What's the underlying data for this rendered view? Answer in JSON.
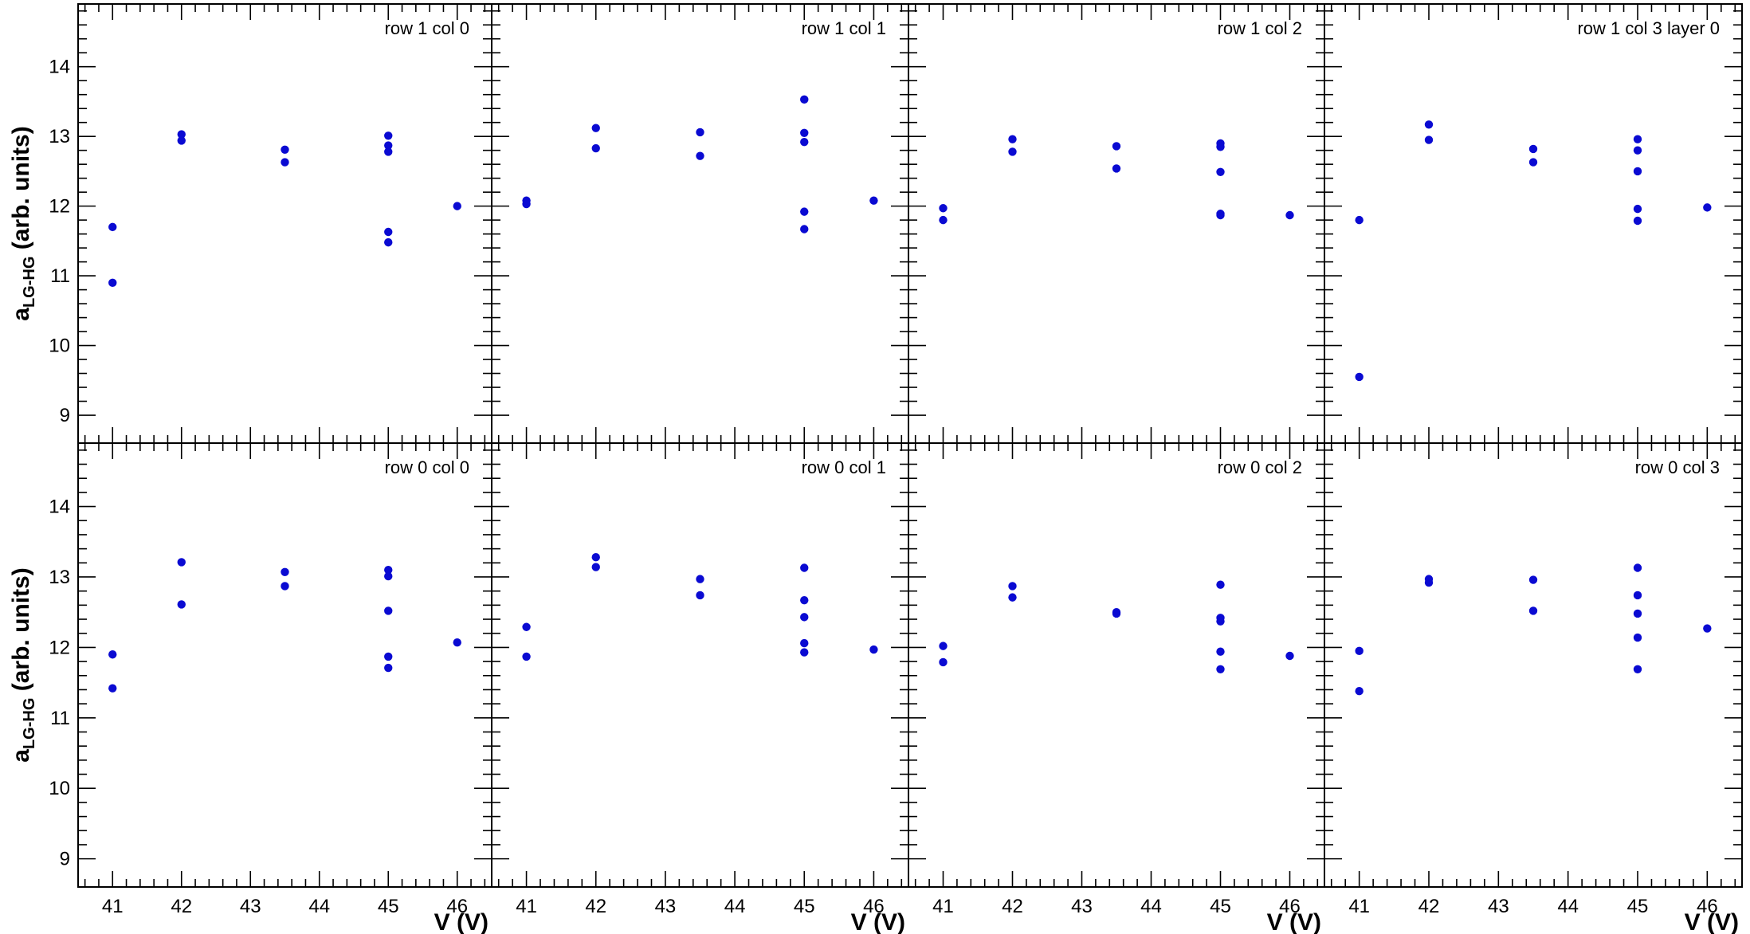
{
  "chart_data": {
    "type": "scatter",
    "xlabel": "V (V)",
    "ylabel_main": "a",
    "ylabel_sub": "LG-HG",
    "ylabel_unit": "(arb. units)",
    "xlim": [
      40.5,
      46.5
    ],
    "ylim": [
      8.6,
      14.9
    ],
    "xticks": [
      41,
      42,
      43,
      44,
      45,
      46
    ],
    "xtick_labels": [
      "41",
      "42",
      "43",
      "44",
      "45",
      "46"
    ],
    "yticks": [
      9,
      10,
      11,
      12,
      13,
      14
    ],
    "ytick_labels": [
      "9",
      "10",
      "11",
      "12",
      "13",
      "14"
    ],
    "marker_color": "#0a0ad2",
    "grid": false,
    "panels": [
      {
        "label": "row 1 col 0",
        "points": [
          [
            41,
            11.7
          ],
          [
            41,
            10.9
          ],
          [
            42,
            13.03
          ],
          [
            42,
            12.94
          ],
          [
            43.5,
            12.81
          ],
          [
            43.5,
            12.63
          ],
          [
            45,
            13.01
          ],
          [
            45,
            12.87
          ],
          [
            45,
            12.78
          ],
          [
            45,
            11.63
          ],
          [
            45,
            11.48
          ],
          [
            46,
            12.0
          ]
        ]
      },
      {
        "label": "row 1 col 1",
        "points": [
          [
            41,
            12.08
          ],
          [
            41,
            12.03
          ],
          [
            42,
            13.12
          ],
          [
            42,
            12.83
          ],
          [
            43.5,
            13.06
          ],
          [
            43.5,
            12.72
          ],
          [
            45,
            13.53
          ],
          [
            45,
            13.05
          ],
          [
            45,
            12.92
          ],
          [
            45,
            11.92
          ],
          [
            45,
            11.67
          ],
          [
            46,
            12.08
          ]
        ]
      },
      {
        "label": "row 1 col 2",
        "points": [
          [
            41,
            11.97
          ],
          [
            41,
            11.8
          ],
          [
            42,
            12.96
          ],
          [
            42,
            12.78
          ],
          [
            43.5,
            12.86
          ],
          [
            43.5,
            12.54
          ],
          [
            45,
            12.9
          ],
          [
            45,
            12.85
          ],
          [
            45,
            12.49
          ],
          [
            45,
            11.89
          ],
          [
            45,
            11.87
          ],
          [
            46,
            11.87
          ]
        ]
      },
      {
        "label": "row 1 col 3 layer 0",
        "points": [
          [
            41,
            11.8
          ],
          [
            41,
            9.55
          ],
          [
            42,
            13.17
          ],
          [
            42,
            12.95
          ],
          [
            43.5,
            12.82
          ],
          [
            43.5,
            12.63
          ],
          [
            45,
            12.96
          ],
          [
            45,
            12.8
          ],
          [
            45,
            12.5
          ],
          [
            45,
            11.96
          ],
          [
            45,
            11.79
          ],
          [
            46,
            11.98
          ]
        ]
      },
      {
        "label": "row 0 col 0",
        "points": [
          [
            41,
            11.9
          ],
          [
            41,
            11.42
          ],
          [
            42,
            13.21
          ],
          [
            42,
            12.61
          ],
          [
            43.5,
            13.07
          ],
          [
            43.5,
            12.87
          ],
          [
            45,
            13.1
          ],
          [
            45,
            13.01
          ],
          [
            45,
            12.52
          ],
          [
            45,
            11.87
          ],
          [
            45,
            11.71
          ],
          [
            46,
            12.07
          ]
        ]
      },
      {
        "label": "row 0 col 1",
        "points": [
          [
            41,
            12.29
          ],
          [
            41,
            11.87
          ],
          [
            42,
            13.28
          ],
          [
            42,
            13.14
          ],
          [
            43.5,
            12.97
          ],
          [
            43.5,
            12.74
          ],
          [
            45,
            13.13
          ],
          [
            45,
            12.67
          ],
          [
            45,
            12.43
          ],
          [
            45,
            12.06
          ],
          [
            45,
            11.93
          ],
          [
            46,
            11.97
          ]
        ]
      },
      {
        "label": "row 0 col 2",
        "points": [
          [
            41,
            12.02
          ],
          [
            41,
            11.79
          ],
          [
            42,
            12.87
          ],
          [
            42,
            12.71
          ],
          [
            43.5,
            12.5
          ],
          [
            43.5,
            12.48
          ],
          [
            45,
            12.89
          ],
          [
            45,
            12.42
          ],
          [
            45,
            12.37
          ],
          [
            45,
            11.94
          ],
          [
            45,
            11.69
          ],
          [
            46,
            11.88
          ]
        ]
      },
      {
        "label": "row 0 col 3",
        "points": [
          [
            41,
            11.95
          ],
          [
            41,
            11.38
          ],
          [
            42,
            12.97
          ],
          [
            42,
            12.92
          ],
          [
            43.5,
            12.96
          ],
          [
            43.5,
            12.52
          ],
          [
            45,
            13.13
          ],
          [
            45,
            12.74
          ],
          [
            45,
            12.48
          ],
          [
            45,
            12.14
          ],
          [
            45,
            11.69
          ],
          [
            46,
            12.27
          ]
        ]
      }
    ]
  }
}
